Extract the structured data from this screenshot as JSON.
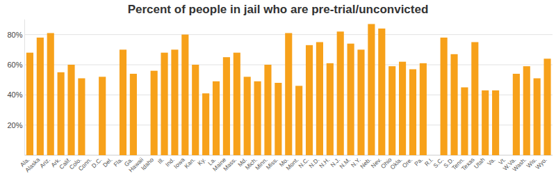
{
  "chart_data": {
    "type": "bar",
    "title": "Percent of people in jail who are pre-trial/unconvicted",
    "categories": [
      "Ala.",
      "Alaska",
      "Ariz.",
      "Ark.",
      "Calif.",
      "Colo.",
      "Conn.",
      "D.C.",
      "Del.",
      "Fla.",
      "Ga.",
      "Hawaii",
      "Idaho",
      "Ill.",
      "Ind.",
      "Iowa",
      "Kan.",
      "Ky.",
      "La.",
      "Maine",
      "Mass.",
      "Md.",
      "Mich.",
      "Minn.",
      "Miss.",
      "Mo.",
      "Mont.",
      "N.C.",
      "N.D.",
      "N.H.",
      "N.J.",
      "N.M.",
      "N.Y.",
      "Neb.",
      "Nev.",
      "Ohio",
      "Okla.",
      "Ore.",
      "Pa.",
      "R.I.",
      "S.C.",
      "S.D.",
      "Tenn.",
      "Texas",
      "Utah",
      "Va.",
      "Vt.",
      "W.Va.",
      "Wash.",
      "Wis.",
      "Wyo."
    ],
    "values": [
      68,
      78,
      81,
      55,
      60,
      51,
      null,
      52,
      null,
      70,
      54,
      null,
      56,
      68,
      70,
      80,
      60,
      41,
      49,
      65,
      68,
      52,
      49,
      60,
      48,
      81,
      46,
      73,
      75,
      61,
      82,
      74,
      70,
      87,
      84,
      59,
      62,
      57,
      61,
      null,
      78,
      67,
      45,
      75,
      43,
      43,
      null,
      54,
      59,
      51,
      64
    ],
    "color": "#f7a11a",
    "ylim": [
      0,
      90
    ],
    "yticks": [
      {
        "value": 20,
        "label": "20%"
      },
      {
        "value": 40,
        "label": "40%"
      },
      {
        "value": 60,
        "label": "60%"
      },
      {
        "value": 80,
        "label": "80%"
      }
    ],
    "grid": true
  }
}
